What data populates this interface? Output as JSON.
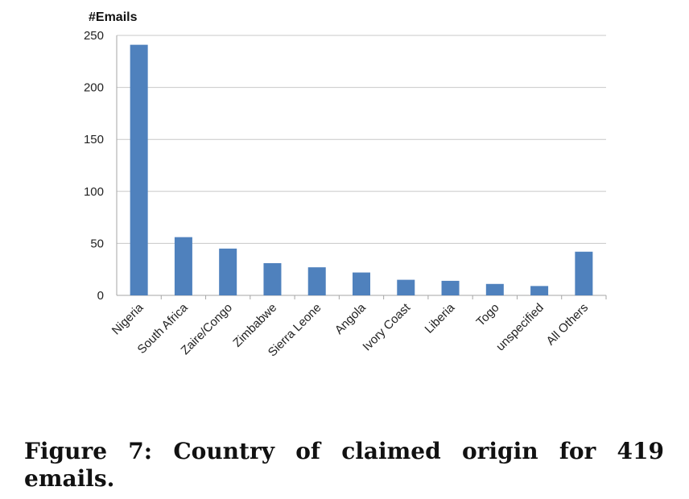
{
  "chart_data": {
    "type": "bar",
    "title": "",
    "xlabel": "",
    "ylabel": "#Emails",
    "ylim": [
      0,
      250
    ],
    "yticks": [
      0,
      50,
      100,
      150,
      200,
      250
    ],
    "grid": true,
    "legend": "none",
    "bar_color": "#4F81BD",
    "grid_color": "#C8C8C8",
    "categories": [
      "Nigeria",
      "South Africa",
      "Zaire/Congo",
      "Zimbabwe",
      "Sierra Leone",
      "Angola",
      "Ivory Coast",
      "Liberia",
      "Togo",
      "unspecified",
      "All Others"
    ],
    "values": [
      241,
      56,
      45,
      31,
      27,
      22,
      15,
      14,
      11,
      9,
      42
    ]
  },
  "caption": {
    "label": "Figure 7:",
    "text": "Country of claimed origin for 419 emails."
  }
}
